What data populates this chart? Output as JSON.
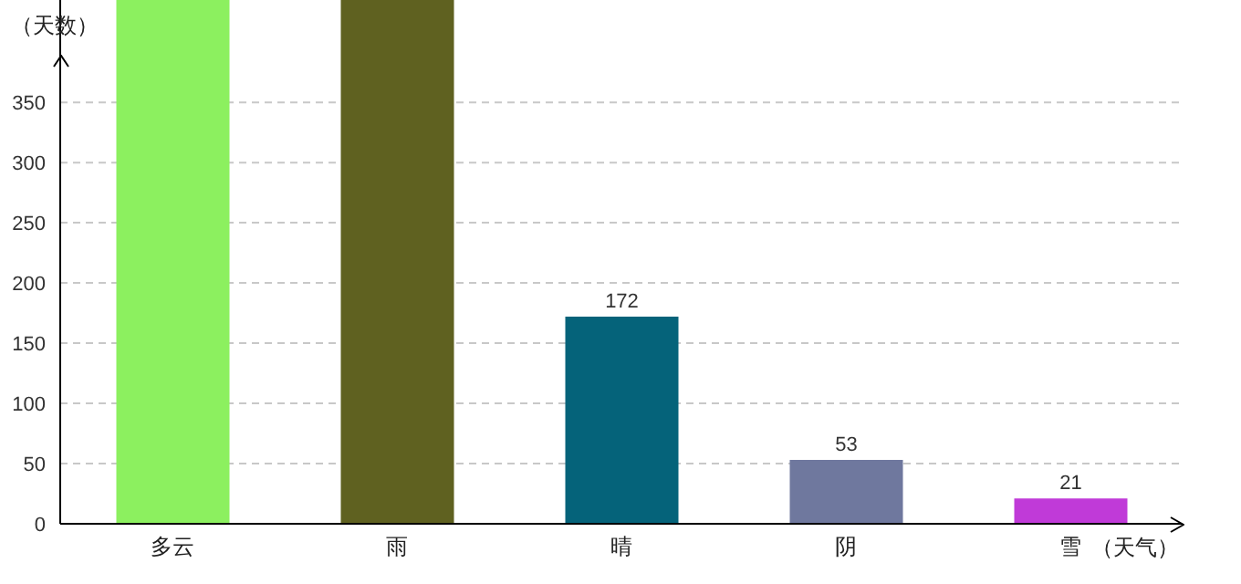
{
  "chart_data": {
    "type": "bar",
    "xlabel": "（天气）",
    "ylabel": "（天数）",
    "categories": [
      "多云",
      "雨",
      "晴",
      "阴",
      "雪"
    ],
    "values": [
      435,
      435,
      172,
      53,
      21
    ],
    "colors": [
      "#8cf05f",
      "#5f6120",
      "#05637a",
      "#6f789e",
      "#c03ad8"
    ],
    "value_labels": [
      null,
      null,
      "172",
      "53",
      "21"
    ],
    "ylim": [
      0,
      435
    ],
    "yticks": [
      0,
      50,
      100,
      150,
      200,
      250,
      300,
      350
    ],
    "grid": "y"
  }
}
